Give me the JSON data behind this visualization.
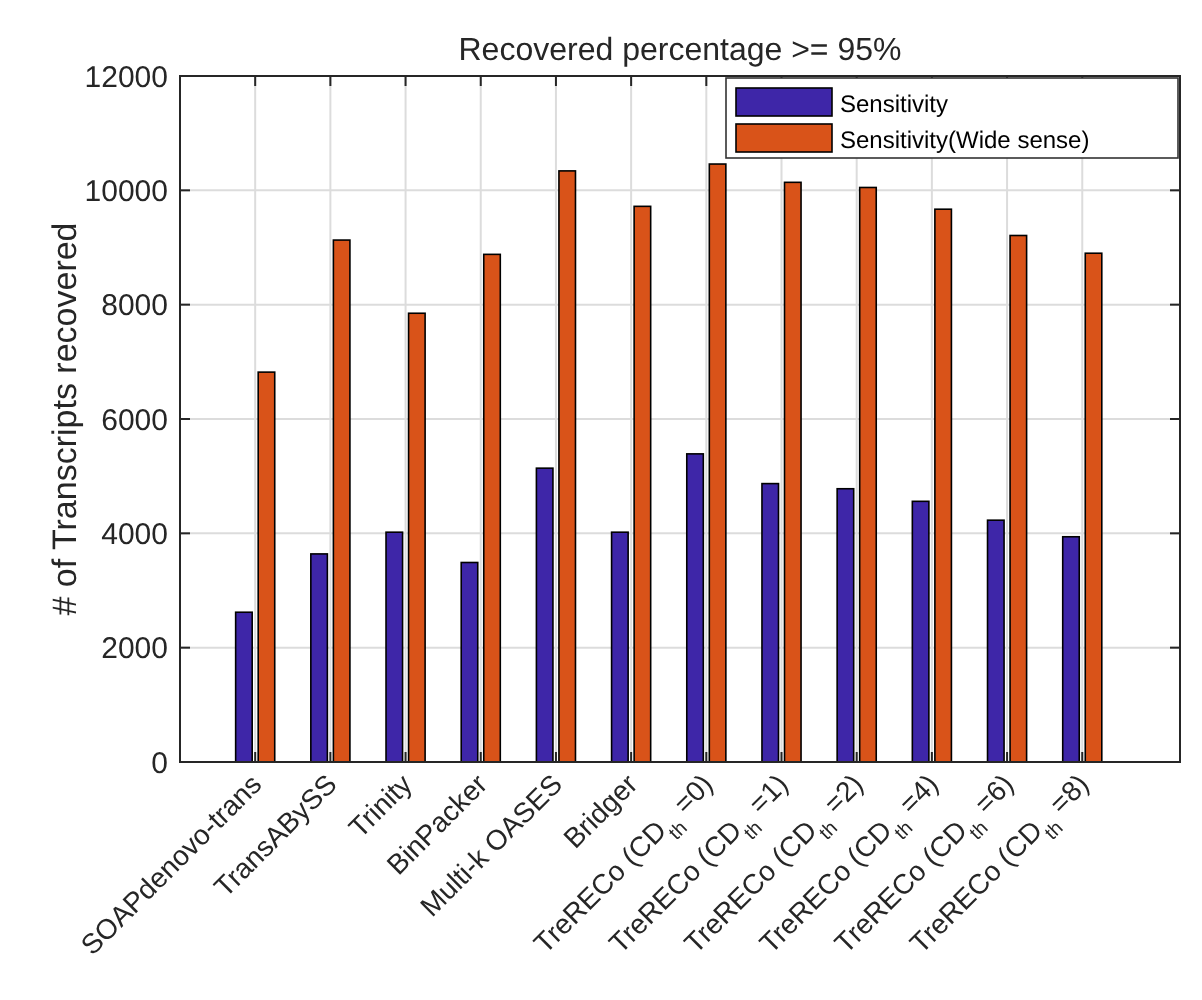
{
  "chart_data": {
    "type": "bar",
    "title": "Recovered percentage >= 95%",
    "ylabel": "# of Transcripts recovered",
    "categories": [
      "SOAPdenovo-trans",
      "TransABySS",
      "Trinity",
      "BinPacker",
      "Multi-k OASES",
      "Bridger",
      "TreRECo (CD$_{th}$ =0)",
      "TreRECo (CD$_{th}$ =1)",
      "TreRECo (CD$_{th}$ =2)",
      "TreRECo (CD$_{th}$ =4)",
      "TreRECo (CD$_{th}$ =6)",
      "TreRECo (CD$_{th}$ =8)"
    ],
    "series": [
      {
        "name": "Sensitivity",
        "color": "#3e26a8",
        "values": [
          2620,
          3640,
          4020,
          3490,
          5140,
          4020,
          5390,
          4870,
          4780,
          4560,
          4230,
          3940
        ]
      },
      {
        "name": "Sensitivity(Wide sense)",
        "color": "#d95319",
        "values": [
          6820,
          9130,
          7850,
          8880,
          10340,
          9720,
          10460,
          10140,
          10050,
          9670,
          9210,
          8900
        ]
      }
    ],
    "ylim": [
      0,
      12000
    ],
    "yticks": [
      0,
      2000,
      4000,
      6000,
      8000,
      10000,
      12000
    ],
    "grid": true,
    "legend": "top right"
  }
}
